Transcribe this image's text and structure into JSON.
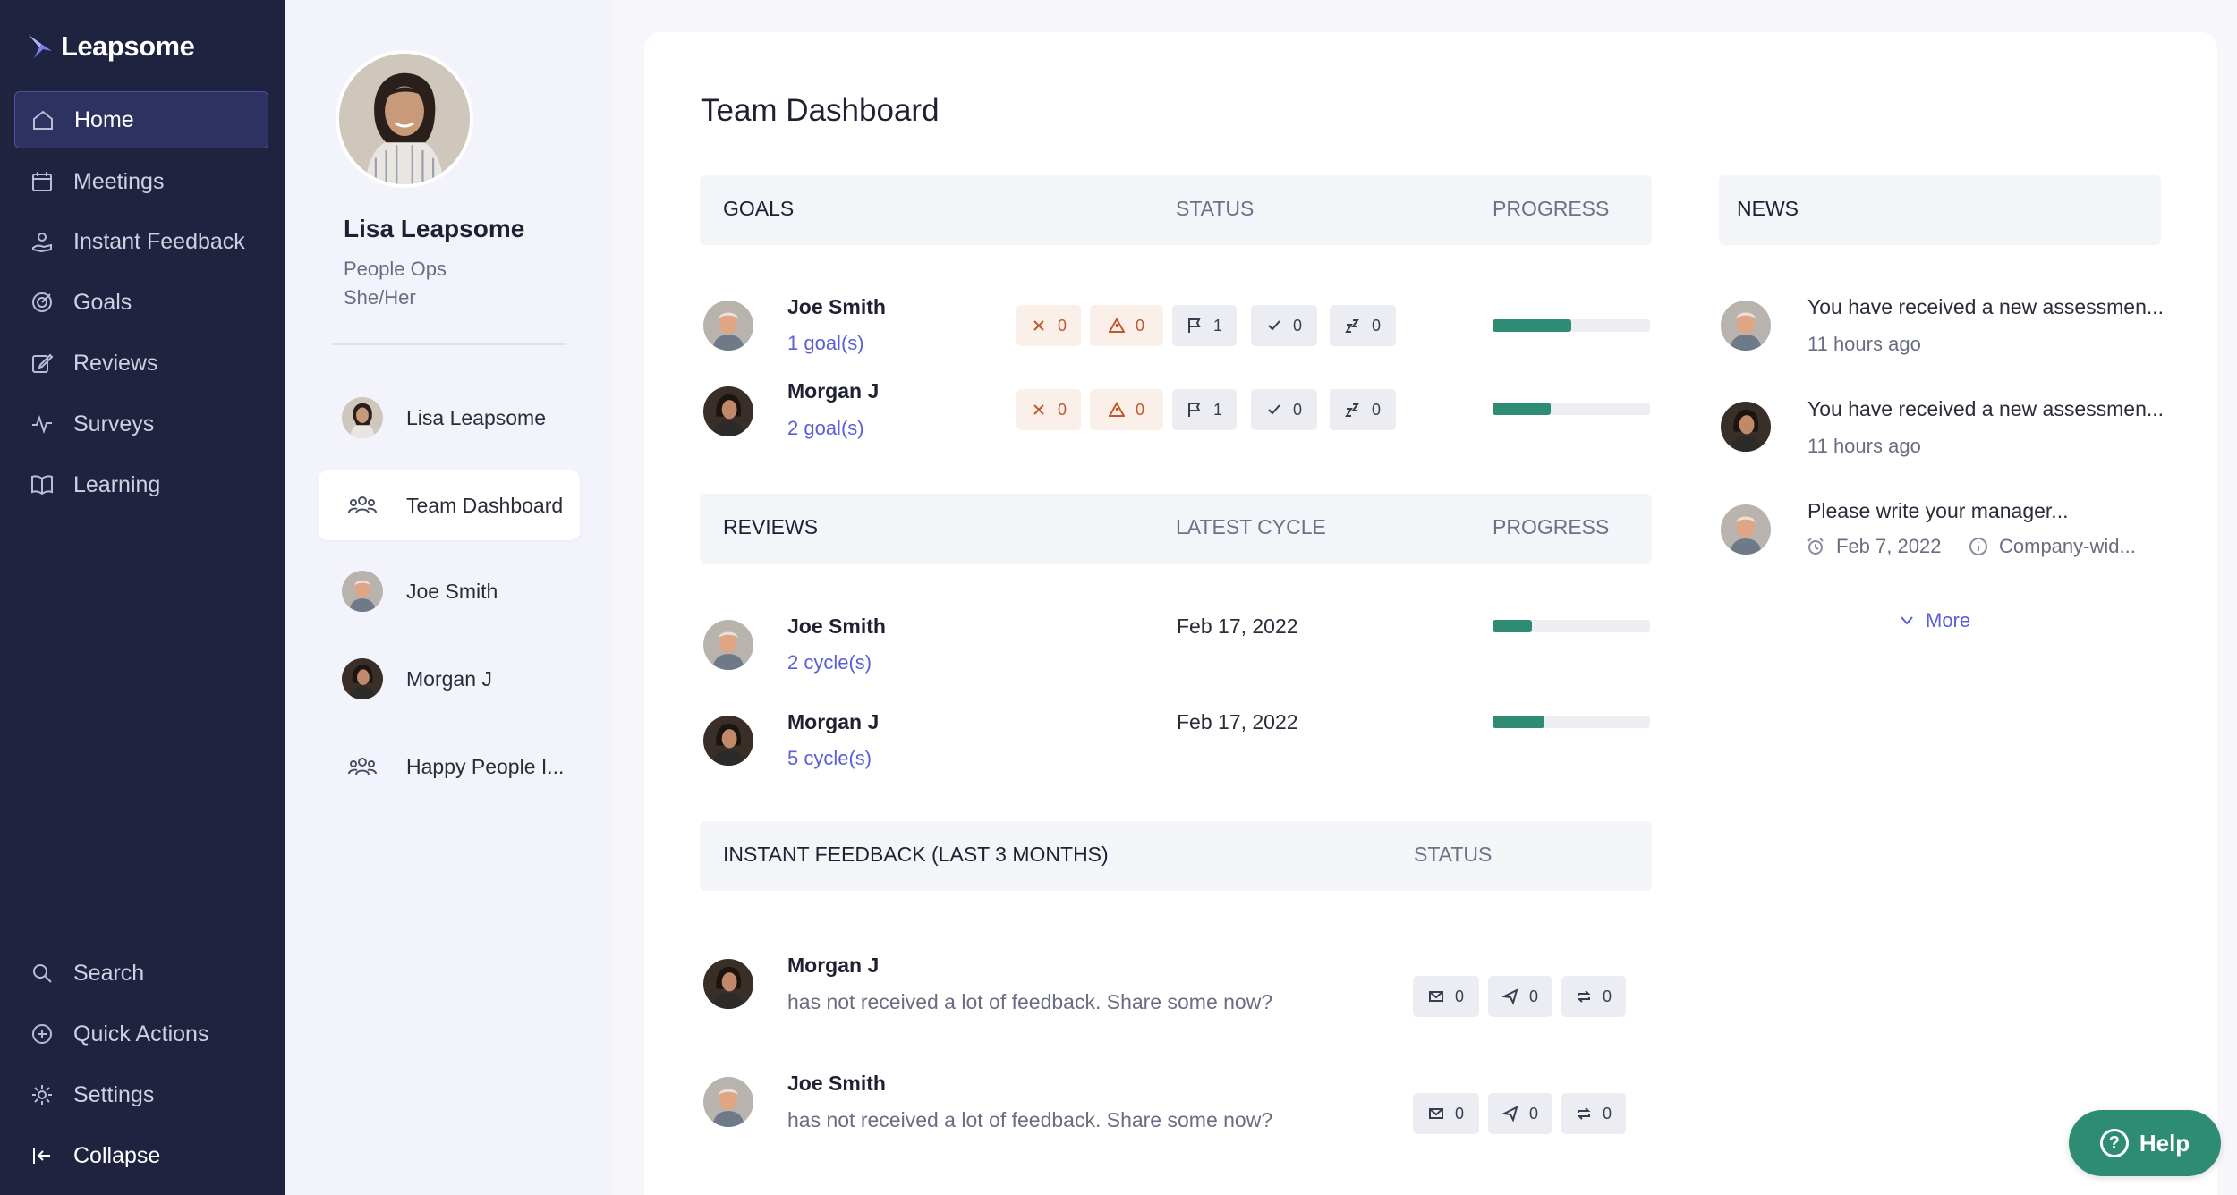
{
  "app": {
    "name": "Leapsome"
  },
  "nav": {
    "items": [
      {
        "label": "Home",
        "icon": "home-icon",
        "active": true
      },
      {
        "label": "Meetings",
        "icon": "calendar-icon"
      },
      {
        "label": "Instant Feedback",
        "icon": "feedback-hand-icon"
      },
      {
        "label": "Goals",
        "icon": "target-icon"
      },
      {
        "label": "Reviews",
        "icon": "edit-icon"
      },
      {
        "label": "Surveys",
        "icon": "pulse-icon"
      },
      {
        "label": "Learning",
        "icon": "book-icon"
      }
    ],
    "bottom": [
      {
        "label": "Search",
        "icon": "search-icon"
      },
      {
        "label": "Quick Actions",
        "icon": "plus-circle-icon"
      },
      {
        "label": "Settings",
        "icon": "gear-icon"
      },
      {
        "label": "Collapse",
        "icon": "collapse-icon"
      }
    ]
  },
  "profile": {
    "name": "Lisa Leapsome",
    "department": "People Ops",
    "pronouns": "She/Her",
    "items": [
      {
        "label": "Lisa Leapsome",
        "type": "person"
      },
      {
        "label": "Team Dashboard",
        "type": "group",
        "active": true
      },
      {
        "label": "Joe Smith",
        "type": "person"
      },
      {
        "label": "Morgan J",
        "type": "person"
      },
      {
        "label": "Happy People I...",
        "type": "group"
      }
    ]
  },
  "dashboard": {
    "title": "Team Dashboard",
    "goals": {
      "header": "GOALS",
      "status_header": "STATUS",
      "progress_header": "PROGRESS",
      "rows": [
        {
          "name": "Joe Smith",
          "link": "1 goal(s)",
          "counts": [
            "0",
            "0",
            "1",
            "0",
            "0"
          ],
          "progress": 0.5
        },
        {
          "name": "Morgan J",
          "link": "2 goal(s)",
          "counts": [
            "0",
            "0",
            "1",
            "0",
            "0"
          ],
          "progress": 0.37
        }
      ]
    },
    "reviews": {
      "header": "REVIEWS",
      "cycle_header": "LATEST CYCLE",
      "progress_header": "PROGRESS",
      "rows": [
        {
          "name": "Joe Smith",
          "link": "2 cycle(s)",
          "date": "Feb 17, 2022",
          "progress": 0.25
        },
        {
          "name": "Morgan J",
          "link": "5 cycle(s)",
          "date": "Feb 17, 2022",
          "progress": 0.33
        }
      ]
    },
    "feedback": {
      "header": "INSTANT FEEDBACK (LAST 3 MONTHS)",
      "status_header": "STATUS",
      "rows": [
        {
          "name": "Morgan J",
          "text": "has not received a lot of feedback. Share some now?",
          "counts": [
            "0",
            "0",
            "0"
          ]
        },
        {
          "name": "Joe Smith",
          "text": "has not received a lot of feedback. Share some now?",
          "counts": [
            "0",
            "0",
            "0"
          ]
        }
      ]
    },
    "news": {
      "header": "NEWS",
      "items": [
        {
          "text": "You have received a new assessmen...",
          "time": "11 hours ago"
        },
        {
          "text": "You have received a new assessmen...",
          "time": "11 hours ago"
        },
        {
          "text": "Please write your manager...",
          "date": "Feb 7, 2022",
          "scope": "Company-wid..."
        }
      ],
      "more": "More"
    }
  },
  "help": {
    "label": "Help"
  },
  "colors": {
    "nav_bg": "#1f2340",
    "accent": "#5a5fd8",
    "progress": "#2e8b74",
    "warn": "#c4562b"
  }
}
